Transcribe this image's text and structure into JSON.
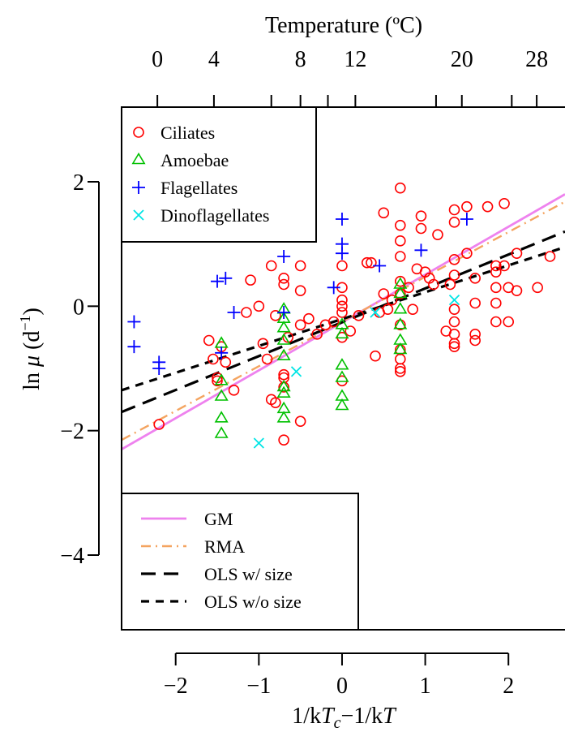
{
  "chart_data": {
    "type": "scatter",
    "xlabel": "1/kT_c−1/kT",
    "ylabel": "ln μ (d⁻¹)",
    "xlim": [
      -2.65,
      2.68
    ],
    "ylim": [
      -5.2,
      3.2
    ],
    "x_ticks": [
      {
        "value": -2,
        "label": "−2"
      },
      {
        "value": -1,
        "label": "−1"
      },
      {
        "value": 0,
        "label": "0"
      },
      {
        "value": 1,
        "label": "1"
      },
      {
        "value": 2,
        "label": "2"
      }
    ],
    "y_ticks": [
      {
        "value": 2,
        "label": "2"
      },
      {
        "value": 0,
        "label": "0"
      },
      {
        "value": -2,
        "label": "−2"
      },
      {
        "value": -4,
        "label": "−4"
      }
    ],
    "top_axis": {
      "label": "Temperature (ºC)",
      "ticks": [
        {
          "value": -2.22,
          "label": "0"
        },
        {
          "value": -1.54,
          "label": "4"
        },
        {
          "value": -0.85,
          "label": ""
        },
        {
          "value": -0.5,
          "label": "8"
        },
        {
          "value": -0.17,
          "label": ""
        },
        {
          "value": 0.16,
          "label": "12"
        },
        {
          "value": 1.13,
          "label": ""
        },
        {
          "value": 1.44,
          "label": "20"
        },
        {
          "value": 2.04,
          "label": ""
        },
        {
          "value": 2.34,
          "label": "28"
        }
      ]
    },
    "series": [
      {
        "name": "Ciliates",
        "marker": "circle",
        "color": "#ff0000",
        "points": [
          [
            -2.2,
            -1.9
          ],
          [
            -1.6,
            -0.55
          ],
          [
            -1.55,
            -0.85
          ],
          [
            -1.5,
            -1.15
          ],
          [
            -1.5,
            -1.2
          ],
          [
            -1.45,
            -0.65
          ],
          [
            -1.4,
            -0.9
          ],
          [
            -1.3,
            -1.35
          ],
          [
            -1.15,
            -0.1
          ],
          [
            -1.1,
            0.42
          ],
          [
            -1.0,
            0.0
          ],
          [
            -0.95,
            -0.6
          ],
          [
            -0.9,
            -0.85
          ],
          [
            -0.85,
            0.65
          ],
          [
            -0.85,
            -1.5
          ],
          [
            -0.8,
            -0.15
          ],
          [
            -0.8,
            -1.55
          ],
          [
            -0.7,
            0.45
          ],
          [
            -0.7,
            0.35
          ],
          [
            -0.7,
            -1.1
          ],
          [
            -0.7,
            -1.15
          ],
          [
            -0.7,
            -1.3
          ],
          [
            -0.7,
            -2.15
          ],
          [
            -0.65,
            -0.5
          ],
          [
            -0.5,
            -0.3
          ],
          [
            -0.5,
            0.25
          ],
          [
            -0.5,
            0.65
          ],
          [
            -0.5,
            -1.85
          ],
          [
            -0.4,
            -0.2
          ],
          [
            -0.3,
            -0.45
          ],
          [
            -0.2,
            -0.3
          ],
          [
            -0.1,
            -0.25
          ],
          [
            0.0,
            0.65
          ],
          [
            0.0,
            0.3
          ],
          [
            0.0,
            0.1
          ],
          [
            0.0,
            0.0
          ],
          [
            0.0,
            -0.1
          ],
          [
            0.0,
            -0.5
          ],
          [
            0.0,
            -1.2
          ],
          [
            0.1,
            -0.4
          ],
          [
            0.2,
            -0.15
          ],
          [
            0.3,
            0.7
          ],
          [
            0.35,
            0.7
          ],
          [
            0.4,
            -0.8
          ],
          [
            0.45,
            -0.1
          ],
          [
            0.5,
            0.2
          ],
          [
            0.5,
            1.5
          ],
          [
            0.55,
            -0.05
          ],
          [
            0.6,
            0.1
          ],
          [
            0.7,
            1.9
          ],
          [
            0.7,
            1.3
          ],
          [
            0.7,
            1.05
          ],
          [
            0.7,
            0.8
          ],
          [
            0.7,
            0.4
          ],
          [
            0.7,
            0.2
          ],
          [
            0.7,
            -0.3
          ],
          [
            0.7,
            -0.7
          ],
          [
            0.7,
            -0.85
          ],
          [
            0.7,
            -1.0
          ],
          [
            0.7,
            -1.05
          ],
          [
            0.8,
            0.3
          ],
          [
            0.85,
            -0.05
          ],
          [
            0.9,
            0.6
          ],
          [
            0.95,
            1.45
          ],
          [
            0.95,
            1.25
          ],
          [
            1.0,
            0.55
          ],
          [
            1.05,
            0.45
          ],
          [
            1.1,
            0.35
          ],
          [
            1.15,
            1.15
          ],
          [
            1.25,
            -0.4
          ],
          [
            1.3,
            0.35
          ],
          [
            1.35,
            1.55
          ],
          [
            1.35,
            1.35
          ],
          [
            1.35,
            0.75
          ],
          [
            1.35,
            0.5
          ],
          [
            1.35,
            -0.05
          ],
          [
            1.35,
            -0.25
          ],
          [
            1.35,
            -0.45
          ],
          [
            1.35,
            -0.6
          ],
          [
            1.35,
            -0.65
          ],
          [
            1.5,
            1.6
          ],
          [
            1.5,
            0.85
          ],
          [
            1.6,
            0.45
          ],
          [
            1.6,
            0.05
          ],
          [
            1.6,
            -0.45
          ],
          [
            1.6,
            -0.55
          ],
          [
            1.75,
            1.6
          ],
          [
            1.85,
            0.65
          ],
          [
            1.85,
            0.55
          ],
          [
            1.85,
            0.3
          ],
          [
            1.85,
            0.05
          ],
          [
            1.85,
            -0.25
          ],
          [
            1.95,
            1.65
          ],
          [
            1.95,
            0.65
          ],
          [
            2.0,
            0.3
          ],
          [
            2.0,
            -0.25
          ],
          [
            2.1,
            0.85
          ],
          [
            2.1,
            0.25
          ],
          [
            2.35,
            0.3
          ],
          [
            2.5,
            0.8
          ]
        ]
      },
      {
        "name": "Amoebae",
        "marker": "triangle",
        "color": "#00c000",
        "points": [
          [
            -1.45,
            -0.6
          ],
          [
            -1.45,
            -1.2
          ],
          [
            -1.45,
            -1.45
          ],
          [
            -1.45,
            -1.8
          ],
          [
            -1.45,
            -2.05
          ],
          [
            -0.7,
            -0.05
          ],
          [
            -0.7,
            -0.2
          ],
          [
            -0.7,
            -0.35
          ],
          [
            -0.7,
            -0.55
          ],
          [
            -0.7,
            -0.8
          ],
          [
            -0.7,
            -1.3
          ],
          [
            -0.7,
            -1.4
          ],
          [
            -0.7,
            -1.65
          ],
          [
            -0.7,
            -1.8
          ],
          [
            0.0,
            -0.3
          ],
          [
            0.0,
            -0.45
          ],
          [
            0.0,
            -0.95
          ],
          [
            0.0,
            -1.15
          ],
          [
            0.0,
            -1.45
          ],
          [
            0.0,
            -1.6
          ],
          [
            0.7,
            0.35
          ],
          [
            0.7,
            0.2
          ],
          [
            0.7,
            -0.05
          ],
          [
            0.7,
            -0.3
          ],
          [
            0.7,
            -0.55
          ],
          [
            0.7,
            -0.7
          ]
        ]
      },
      {
        "name": "Flagellates",
        "marker": "plus",
        "color": "#0000ff",
        "points": [
          [
            -2.5,
            -0.25
          ],
          [
            -2.5,
            -0.65
          ],
          [
            -2.2,
            -0.9
          ],
          [
            -2.2,
            -1.0
          ],
          [
            -1.5,
            0.4
          ],
          [
            -1.4,
            0.45
          ],
          [
            -1.45,
            -0.75
          ],
          [
            -1.3,
            -0.1
          ],
          [
            -0.7,
            0.8
          ],
          [
            -0.7,
            -0.1
          ],
          [
            -0.1,
            0.3
          ],
          [
            0.0,
            1.4
          ],
          [
            0.0,
            1.0
          ],
          [
            0.0,
            0.85
          ],
          [
            0.45,
            0.65
          ],
          [
            0.95,
            0.9
          ],
          [
            1.5,
            1.4
          ]
        ]
      },
      {
        "name": "Dinoflagellates",
        "marker": "cross",
        "color": "#00e5e5",
        "points": [
          [
            -1.0,
            -2.2
          ],
          [
            -0.55,
            -1.05
          ],
          [
            0.4,
            -0.1
          ],
          [
            1.35,
            0.1
          ]
        ]
      }
    ],
    "lines": [
      {
        "name": "GM",
        "color": "#ee82ee",
        "dash": "solid",
        "width": 2.8,
        "x": [
          -2.65,
          2.68
        ],
        "y": [
          -2.3,
          1.8
        ]
      },
      {
        "name": "RMA",
        "color": "#f4a460",
        "dash": "dashdot",
        "width": 2.4,
        "x": [
          -2.65,
          2.68
        ],
        "y": [
          -2.15,
          1.68
        ]
      },
      {
        "name": "OLS w/ size",
        "color": "#000000",
        "dash": "longdash",
        "width": 3.2,
        "x": [
          -2.65,
          2.68
        ],
        "y": [
          -1.7,
          1.2
        ]
      },
      {
        "name": "OLS w/o size",
        "color": "#000000",
        "dash": "shortdash",
        "width": 3.2,
        "x": [
          -2.65,
          2.68
        ],
        "y": [
          -1.35,
          0.95
        ]
      }
    ],
    "legend_points_position": "top-left",
    "legend_lines_position": "bottom-left",
    "grid": false
  }
}
